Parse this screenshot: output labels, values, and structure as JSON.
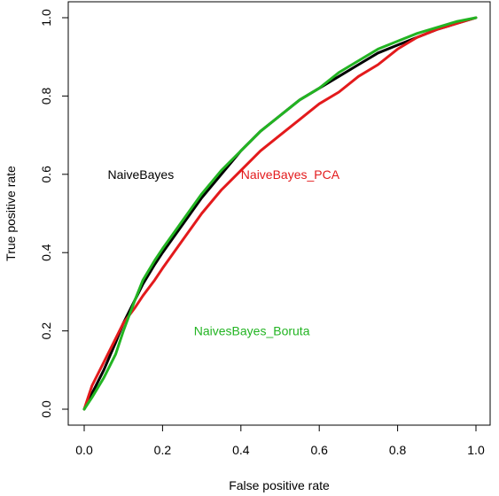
{
  "chart_data": {
    "type": "line",
    "title": "",
    "xlabel": "False positive rate",
    "ylabel": "True positive rate",
    "xlim": [
      0,
      1
    ],
    "ylim": [
      0,
      1
    ],
    "x_ticks": [
      "0.0",
      "0.2",
      "0.4",
      "0.6",
      "0.8",
      "1.0"
    ],
    "y_ticks": [
      "0.0",
      "0.2",
      "0.4",
      "0.6",
      "0.8",
      "1.0"
    ],
    "grid": false,
    "legend": "none",
    "series": [
      {
        "name": "NaiveBayes",
        "color": "#000000",
        "x": [
          0.0,
          0.02,
          0.05,
          0.08,
          0.1,
          0.13,
          0.15,
          0.18,
          0.2,
          0.25,
          0.3,
          0.35,
          0.4,
          0.45,
          0.5,
          0.55,
          0.6,
          0.65,
          0.7,
          0.75,
          0.8,
          0.85,
          0.9,
          0.95,
          1.0
        ],
        "y": [
          0.0,
          0.04,
          0.1,
          0.17,
          0.22,
          0.28,
          0.32,
          0.37,
          0.4,
          0.47,
          0.54,
          0.6,
          0.66,
          0.71,
          0.75,
          0.79,
          0.82,
          0.85,
          0.88,
          0.91,
          0.93,
          0.95,
          0.97,
          0.985,
          1.0
        ]
      },
      {
        "name": "NaiveBayes_PCA",
        "color": "#e31a1c",
        "x": [
          0.0,
          0.02,
          0.05,
          0.08,
          0.1,
          0.13,
          0.15,
          0.18,
          0.2,
          0.25,
          0.3,
          0.35,
          0.4,
          0.45,
          0.5,
          0.55,
          0.6,
          0.65,
          0.7,
          0.75,
          0.8,
          0.85,
          0.9,
          0.95,
          1.0
        ],
        "y": [
          0.0,
          0.06,
          0.12,
          0.18,
          0.22,
          0.26,
          0.29,
          0.33,
          0.36,
          0.43,
          0.5,
          0.56,
          0.61,
          0.66,
          0.7,
          0.74,
          0.78,
          0.81,
          0.85,
          0.88,
          0.92,
          0.95,
          0.97,
          0.985,
          1.0
        ]
      },
      {
        "name": "NaivesBayes_Boruta",
        "color": "#22b422",
        "x": [
          0.0,
          0.02,
          0.05,
          0.08,
          0.1,
          0.13,
          0.15,
          0.18,
          0.2,
          0.25,
          0.3,
          0.35,
          0.4,
          0.45,
          0.5,
          0.55,
          0.6,
          0.65,
          0.7,
          0.75,
          0.8,
          0.85,
          0.9,
          0.95,
          1.0
        ],
        "y": [
          0.0,
          0.03,
          0.08,
          0.14,
          0.2,
          0.28,
          0.33,
          0.38,
          0.41,
          0.48,
          0.55,
          0.61,
          0.66,
          0.71,
          0.75,
          0.79,
          0.82,
          0.86,
          0.89,
          0.92,
          0.94,
          0.96,
          0.975,
          0.99,
          1.0
        ]
      }
    ],
    "annotations": [
      {
        "text": "NaiveBayes",
        "x": 0.06,
        "y": 0.6,
        "color": "#000000"
      },
      {
        "text": "NaiveBayes_PCA",
        "x": 0.4,
        "y": 0.6,
        "color": "#e31a1c"
      },
      {
        "text": "NaivesBayes_Boruta",
        "x": 0.28,
        "y": 0.2,
        "color": "#22b422"
      }
    ]
  }
}
